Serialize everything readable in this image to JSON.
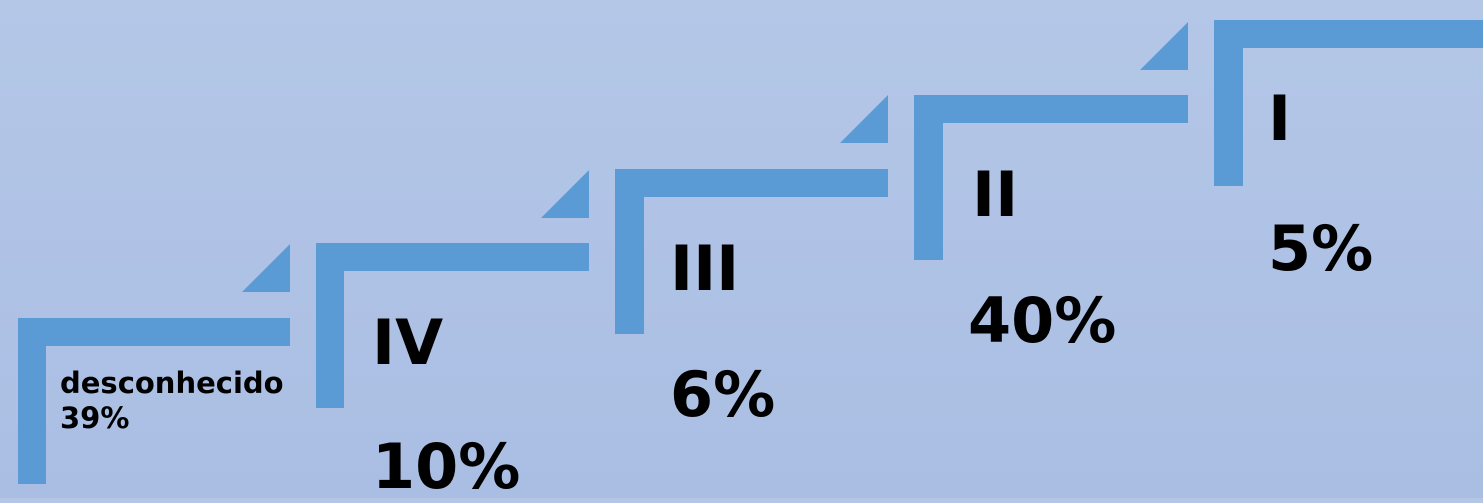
{
  "colors": {
    "background": "#b4c7e7",
    "step": "#5b9bd5"
  },
  "steps": [
    {
      "text": "desconhecido 39%"
    },
    {
      "roman": "IV",
      "percent": "10%"
    },
    {
      "roman": "III",
      "percent": "6%"
    },
    {
      "roman": "II",
      "percent": "40%"
    },
    {
      "roman": "I",
      "percent": "5%"
    }
  ]
}
